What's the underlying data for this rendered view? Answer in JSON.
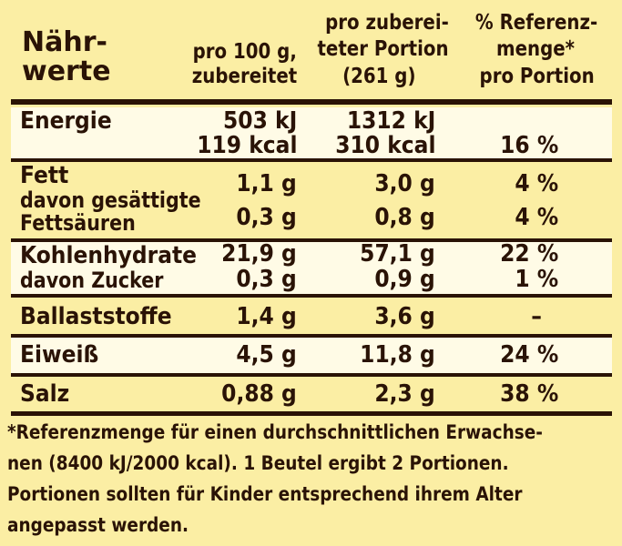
{
  "header": {
    "title_line1": "Nähr-",
    "title_line2": "werte",
    "col1_line1": "pro 100 g,",
    "col1_line2": "zubereitet",
    "col2_line1": "pro zuberei-",
    "col2_line2": "teter Portion",
    "col2_line3": "(261 g)",
    "col3_line1": "% Referenz-",
    "col3_line2": "menge*",
    "col3_line3": "pro Portion"
  },
  "rows": {
    "energie": {
      "label": "Energie",
      "c1a": "503 kJ",
      "c1b": "119 kcal",
      "c2a": "1312 kJ",
      "c2b": "310 kcal",
      "c3": "16 %"
    },
    "fett": {
      "label": "Fett",
      "c1": "1,1 g",
      "c2": "3,0 g",
      "c3": "4 %"
    },
    "gesaettigt": {
      "label_line1": "davon gesättigte",
      "label_line2": "Fettsäuren",
      "c1": "0,3 g",
      "c2": "0,8 g",
      "c3": "4 %"
    },
    "kohlenhydrate": {
      "label": "Kohlenhydrate",
      "c1": "21,9 g",
      "c2": "57,1 g",
      "c3": "22 %"
    },
    "zucker": {
      "label": "davon Zucker",
      "c1": "0,3 g",
      "c2": "0,9 g",
      "c3": "1 %"
    },
    "ballaststoffe": {
      "label": "Ballaststoffe",
      "c1": "1,4 g",
      "c2": "3,6 g",
      "c3": "–"
    },
    "eiweiss": {
      "label": "Eiweiß",
      "c1": "4,5 g",
      "c2": "11,8 g",
      "c3": "24 %"
    },
    "salz": {
      "label": "Salz",
      "c1": "0,88 g",
      "c2": "2,3 g",
      "c3": "38 %"
    }
  },
  "footnote": {
    "line1": "*Referenzmenge für einen durchschnittlichen Erwachse-",
    "line2": "nen (8400 kJ/2000 kcal). 1 Beutel ergibt 2 Portionen.",
    "line3": "Portionen sollten für Kinder entsprechend ihrem Alter",
    "line4": "angepasst werden."
  },
  "colors": {
    "background": "#fbeea4",
    "band": "#fffbe6",
    "text": "#2a1306"
  }
}
